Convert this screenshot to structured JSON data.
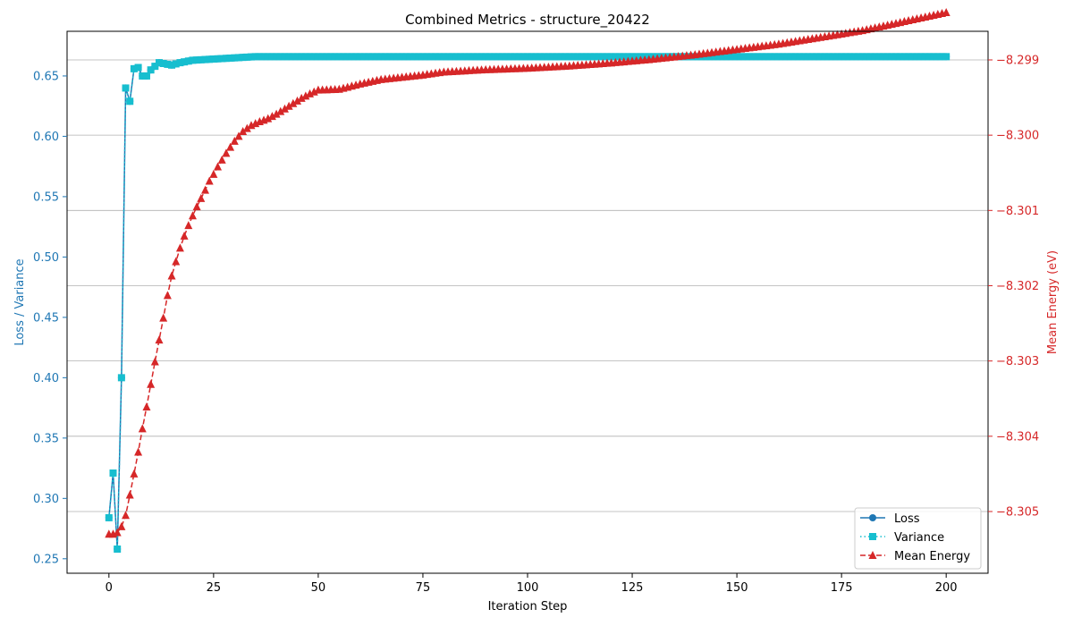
{
  "chart_data": {
    "type": "line",
    "title": "Combined Metrics - structure_20422",
    "xlabel": "Iteration Step",
    "ylabel_left": "Loss / Variance",
    "ylabel_right": "Mean Energy (eV)",
    "xlim": [
      -10,
      210
    ],
    "ylim_left": [
      0.238,
      0.687
    ],
    "ylim_right": [
      -8.30582,
      -8.29862
    ],
    "x_ticks": [
      0,
      25,
      50,
      75,
      100,
      125,
      150,
      175,
      200
    ],
    "y_left_ticks": [
      0.25,
      0.3,
      0.35,
      0.4,
      0.45,
      0.5,
      0.55,
      0.6,
      0.65
    ],
    "y_right_ticks": [
      -8.305,
      -8.304,
      -8.303,
      -8.302,
      -8.301,
      -8.3,
      -8.299
    ],
    "y_right_tick_labels": [
      "−8.305",
      "−8.304",
      "−8.303",
      "−8.302",
      "−8.301",
      "−8.300",
      "−8.299"
    ],
    "grid": "right-axis horizontal lines",
    "legend_position": "lower-right",
    "colors": {
      "loss": "#1f77b4",
      "variance": "#17becf",
      "mean_energy": "#d62728",
      "left_axis_text": "#1f77b4",
      "right_axis_text": "#d62728",
      "grid": "#b0b0b0"
    },
    "series": [
      {
        "name": "Loss",
        "axis": "left",
        "marker": "circle",
        "linestyle": "solid",
        "x": [
          0,
          1,
          2,
          3,
          4,
          5,
          6,
          7,
          8,
          9,
          10,
          12,
          15,
          17,
          20,
          25,
          30,
          35,
          40,
          60,
          80,
          100,
          120,
          140,
          160,
          180,
          200
        ],
        "values": [
          0.284,
          0.321,
          0.258,
          0.4,
          0.64,
          0.629,
          0.656,
          0.657,
          0.65,
          0.65,
          0.655,
          0.661,
          0.659,
          0.661,
          0.663,
          0.664,
          0.665,
          0.666,
          0.666,
          0.666,
          0.666,
          0.666,
          0.666,
          0.666,
          0.666,
          0.666,
          0.666
        ]
      },
      {
        "name": "Variance",
        "axis": "left",
        "marker": "square",
        "linestyle": "dotted",
        "x": [
          0,
          1,
          2,
          3,
          4,
          5,
          6,
          7,
          8,
          9,
          10,
          12,
          15,
          17,
          20,
          25,
          30,
          35,
          40,
          60,
          80,
          100,
          120,
          140,
          160,
          180,
          200
        ],
        "values": [
          0.284,
          0.321,
          0.258,
          0.4,
          0.64,
          0.629,
          0.656,
          0.657,
          0.65,
          0.65,
          0.655,
          0.661,
          0.659,
          0.661,
          0.663,
          0.664,
          0.665,
          0.666,
          0.666,
          0.666,
          0.666,
          0.666,
          0.666,
          0.666,
          0.666,
          0.666,
          0.666
        ]
      },
      {
        "name": "Mean Energy",
        "axis": "right",
        "marker": "triangle",
        "linestyle": "dashed",
        "x": [
          0,
          1,
          2,
          3,
          4,
          5,
          6,
          7,
          8,
          9,
          10,
          11,
          12,
          13,
          14,
          15,
          16,
          17,
          18,
          19,
          20,
          21,
          22,
          23,
          24,
          25,
          26,
          27,
          28,
          29,
          30,
          32,
          34,
          36,
          38,
          40,
          42,
          44,
          46,
          48,
          50,
          55,
          60,
          65,
          70,
          75,
          80,
          90,
          100,
          110,
          120,
          130,
          140,
          150,
          160,
          170,
          180,
          190,
          200
        ],
        "values": [
          -8.3053,
          -8.3053,
          -8.30528,
          -8.3052,
          -8.30505,
          -8.30478,
          -8.3045,
          -8.30421,
          -8.3039,
          -8.30361,
          -8.30331,
          -8.30301,
          -8.30272,
          -8.30243,
          -8.30213,
          -8.30187,
          -8.30168,
          -8.3015,
          -8.30134,
          -8.3012,
          -8.30107,
          -8.30095,
          -8.30084,
          -8.30073,
          -8.30061,
          -8.30052,
          -8.30042,
          -8.30033,
          -8.30024,
          -8.30016,
          -8.30008,
          -8.29995,
          -8.29987,
          -8.29982,
          -8.29978,
          -8.29972,
          -8.29965,
          -8.29958,
          -8.29951,
          -8.29945,
          -8.2994,
          -8.29939,
          -8.29932,
          -8.29926,
          -8.29923,
          -8.2992,
          -8.29916,
          -8.29913,
          -8.29911,
          -8.29908,
          -8.29904,
          -8.29899,
          -8.29893,
          -8.29886,
          -8.29879,
          -8.2987,
          -8.29861,
          -8.29849,
          -8.29837
        ]
      }
    ]
  }
}
